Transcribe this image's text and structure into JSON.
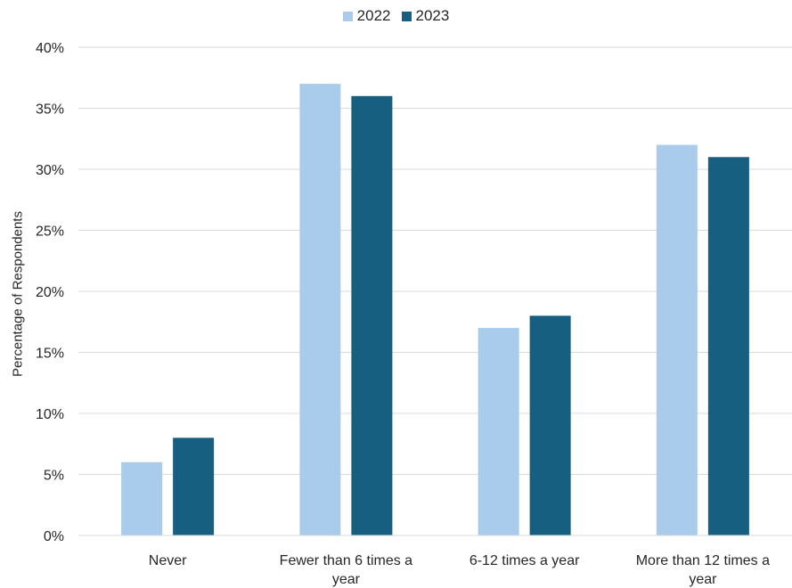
{
  "chart_data": {
    "type": "bar",
    "categories": [
      "Never",
      "Fewer than 6 times a year",
      "6-12 times a year",
      "More than 12 times a year"
    ],
    "category_lines": [
      [
        "Never"
      ],
      [
        "Fewer than 6 times a",
        "year"
      ],
      [
        "6-12 times a year"
      ],
      [
        "More than 12 times a",
        "year"
      ]
    ],
    "series": [
      {
        "name": "2022",
        "values": [
          6,
          37,
          17,
          32
        ],
        "color": "#a9cbec"
      },
      {
        "name": "2023",
        "values": [
          8,
          36,
          18,
          31
        ],
        "color": "#165f80"
      }
    ],
    "ylabel": "Percentage of Respondents",
    "ylim": [
      0,
      40
    ],
    "yticks": [
      0,
      5,
      10,
      15,
      20,
      25,
      30,
      35,
      40
    ],
    "ytick_labels": [
      "0%",
      "5%",
      "10%",
      "15%",
      "20%",
      "25%",
      "30%",
      "35%",
      "40%"
    ],
    "grid": true,
    "legend_position": "top-center",
    "gridline_color": "#d9d9d9"
  }
}
